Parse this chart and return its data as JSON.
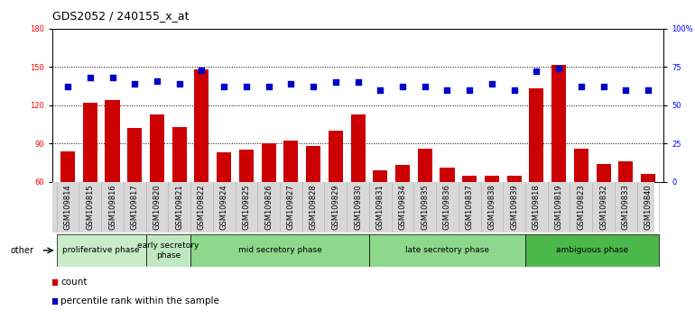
{
  "title": "GDS2052 / 240155_x_at",
  "samples": [
    "GSM109814",
    "GSM109815",
    "GSM109816",
    "GSM109817",
    "GSM109820",
    "GSM109821",
    "GSM109822",
    "GSM109824",
    "GSM109825",
    "GSM109826",
    "GSM109827",
    "GSM109828",
    "GSM109829",
    "GSM109830",
    "GSM109831",
    "GSM109834",
    "GSM109835",
    "GSM109836",
    "GSM109837",
    "GSM109838",
    "GSM109839",
    "GSM109818",
    "GSM109819",
    "GSM109823",
    "GSM109832",
    "GSM109833",
    "GSM109840"
  ],
  "bar_values": [
    84,
    122,
    124,
    102,
    113,
    103,
    148,
    83,
    85,
    90,
    92,
    88,
    100,
    113,
    69,
    73,
    86,
    71,
    65,
    65,
    65,
    133,
    152,
    86,
    74,
    76,
    66
  ],
  "dot_pct": [
    62,
    68,
    68,
    64,
    66,
    64,
    73,
    62,
    62,
    62,
    64,
    62,
    65,
    65,
    60,
    62,
    62,
    60,
    60,
    64,
    60,
    72,
    74,
    62,
    62,
    60,
    60
  ],
  "bar_color": "#cc0000",
  "dot_color": "#0000cc",
  "ylim_left": [
    60,
    180
  ],
  "ylim_right": [
    0,
    100
  ],
  "yticks_left": [
    60,
    90,
    120,
    150,
    180
  ],
  "yticks_right": [
    0,
    25,
    50,
    75,
    100
  ],
  "ytick_labels_right": [
    "0",
    "25",
    "50",
    "75",
    "100%"
  ],
  "phases": [
    {
      "label": "proliferative phase",
      "start": 0,
      "end": 3,
      "color": "#c8ecc8"
    },
    {
      "label": "early secretory\nphase",
      "start": 4,
      "end": 5,
      "color": "#c0e8c0"
    },
    {
      "label": "mid secretory phase",
      "start": 6,
      "end": 13,
      "color": "#8dd88d"
    },
    {
      "label": "late secretory phase",
      "start": 14,
      "end": 20,
      "color": "#8dd88d"
    },
    {
      "label": "ambiguous phase",
      "start": 21,
      "end": 26,
      "color": "#4cb84c"
    }
  ],
  "legend_count_label": "count",
  "legend_pct_label": "percentile rank within the sample",
  "grid_lines": [
    90,
    120,
    150
  ],
  "title_fontsize": 9,
  "tick_fontsize": 6,
  "phase_fontsize": 6.5
}
